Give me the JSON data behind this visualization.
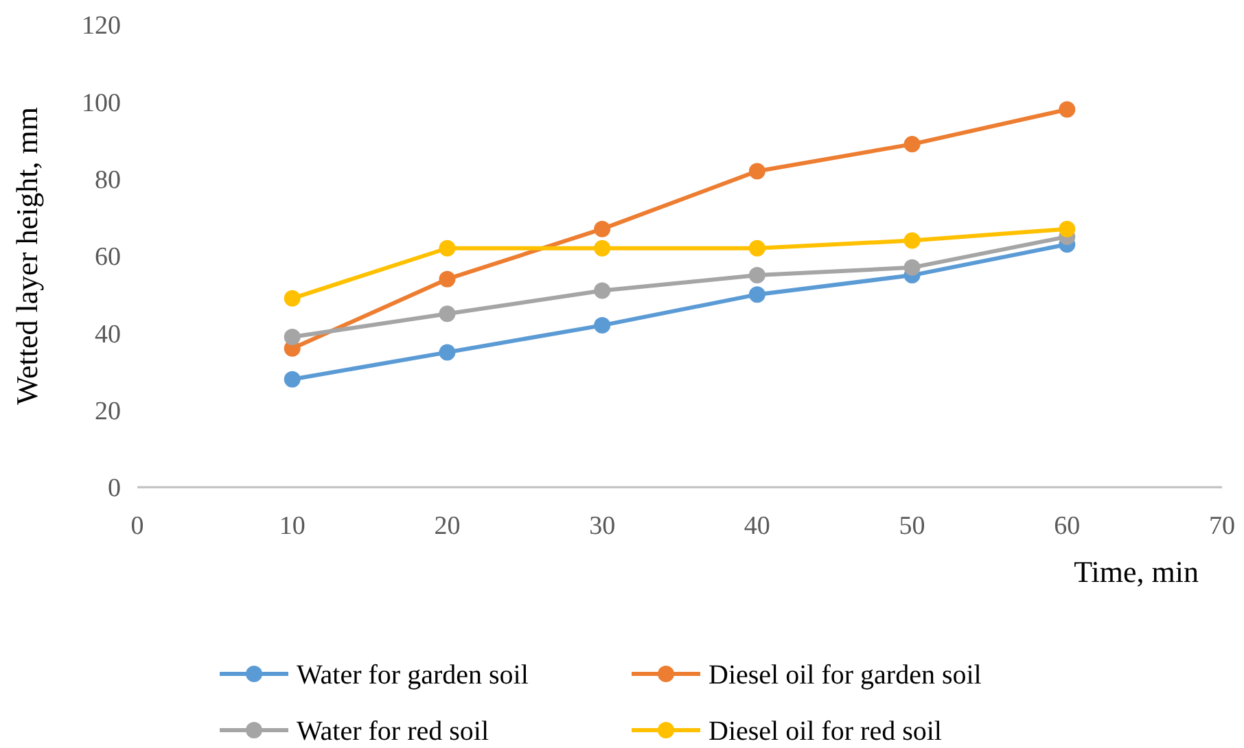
{
  "chart_data": {
    "type": "line",
    "xlabel": "Time, min",
    "ylabel": "Wetted layer height, mm",
    "x": [
      10,
      20,
      30,
      40,
      50,
      60
    ],
    "xlim": [
      0,
      70
    ],
    "xticks": [
      0,
      10,
      20,
      30,
      40,
      50,
      60,
      70
    ],
    "ylim": [
      0,
      120
    ],
    "yticks": [
      0,
      20,
      40,
      60,
      80,
      100,
      120
    ],
    "grid": false,
    "legend": "bottom",
    "marker": "circle",
    "line_style": "solid",
    "series": [
      {
        "name": "Water for garden soil",
        "color": "#5b9bd5",
        "values": [
          28,
          35,
          42,
          50,
          55,
          63
        ]
      },
      {
        "name": "Diesel oil for garden soil",
        "color": "#ed7d31",
        "values": [
          36,
          54,
          67,
          82,
          89,
          98
        ]
      },
      {
        "name": "Water for red soil",
        "color": "#a5a5a5",
        "values": [
          39,
          45,
          51,
          55,
          57,
          65
        ]
      },
      {
        "name": "Diesel oil for red soil",
        "color": "#ffc000",
        "values": [
          49,
          62,
          62,
          62,
          64,
          67
        ]
      }
    ]
  }
}
